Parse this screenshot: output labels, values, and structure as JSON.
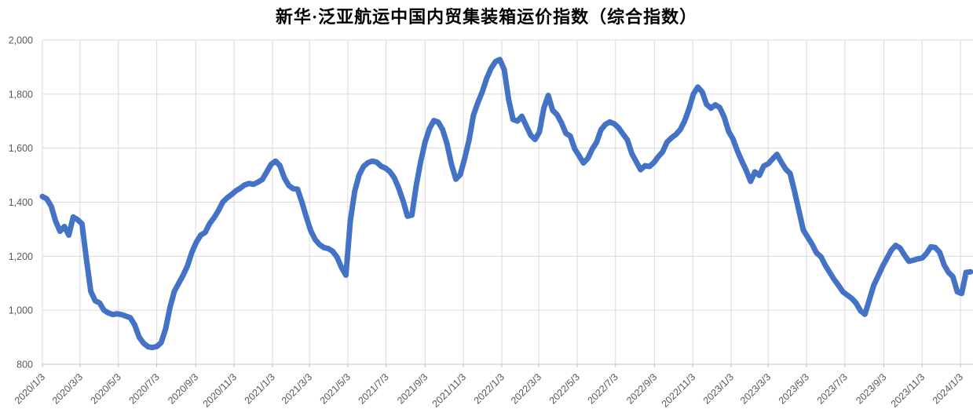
{
  "title": "新华·泛亚航运中国内贸集装箱运价指数（综合指数）",
  "chart_data": {
    "type": "line",
    "title": "新华·泛亚航运中国内贸集装箱运价指数（综合指数）",
    "series_name": "综合指数",
    "line_color": "#4472C4",
    "grid": true,
    "gridline_color": "#D9D9D9",
    "axis_line_color": "#BFBFBF",
    "label_color": "#595959",
    "ylim": [
      800,
      2000
    ],
    "y_tick_values": [
      800,
      1000,
      1200,
      1400,
      1600,
      1800,
      2000
    ],
    "y_tick_labels": [
      "800",
      "1,000",
      "1,200",
      "1,400",
      "1,600",
      "1,800",
      "2,000"
    ],
    "x_tick_labels": [
      "2020/1/3",
      "2020/3/3",
      "2020/5/3",
      "2020/7/3",
      "2020/9/3",
      "2020/11/3",
      "2021/1/3",
      "2021/3/3",
      "2021/5/3",
      "2021/7/3",
      "2021/9/3",
      "2021/11/3",
      "2022/1/3",
      "2022/3/3",
      "2022/5/3",
      "2022/7/3",
      "2022/9/3",
      "2022/11/3",
      "2023/1/3",
      "2023/3/3",
      "2023/5/3",
      "2023/7/3",
      "2023/9/3",
      "2023/11/3",
      "2024/1/3"
    ],
    "start_date": "2020/1/3",
    "interval_days": 7,
    "values": [
      1421,
      1412,
      1385,
      1330,
      1292,
      1310,
      1278,
      1345,
      1335,
      1320,
      1190,
      1070,
      1035,
      1027,
      1000,
      990,
      984,
      987,
      984,
      978,
      972,
      945,
      900,
      878,
      865,
      862,
      866,
      880,
      930,
      1010,
      1070,
      1100,
      1130,
      1165,
      1215,
      1252,
      1278,
      1288,
      1320,
      1342,
      1368,
      1400,
      1416,
      1428,
      1442,
      1452,
      1464,
      1469,
      1466,
      1474,
      1484,
      1512,
      1540,
      1552,
      1535,
      1490,
      1462,
      1450,
      1448,
      1400,
      1345,
      1295,
      1262,
      1243,
      1232,
      1228,
      1218,
      1196,
      1158,
      1130,
      1330,
      1440,
      1500,
      1532,
      1546,
      1552,
      1548,
      1533,
      1526,
      1513,
      1490,
      1452,
      1405,
      1348,
      1352,
      1462,
      1550,
      1622,
      1672,
      1702,
      1696,
      1668,
      1615,
      1540,
      1485,
      1502,
      1562,
      1630,
      1722,
      1768,
      1808,
      1858,
      1895,
      1920,
      1928,
      1890,
      1780,
      1706,
      1700,
      1718,
      1683,
      1648,
      1632,
      1660,
      1748,
      1795,
      1740,
      1724,
      1694,
      1655,
      1645,
      1598,
      1572,
      1545,
      1562,
      1596,
      1622,
      1668,
      1688,
      1697,
      1690,
      1675,
      1652,
      1630,
      1580,
      1550,
      1520,
      1535,
      1532,
      1546,
      1568,
      1586,
      1622,
      1638,
      1650,
      1668,
      1700,
      1745,
      1800,
      1826,
      1808,
      1762,
      1748,
      1760,
      1750,
      1715,
      1662,
      1634,
      1590,
      1552,
      1518,
      1477,
      1512,
      1499,
      1534,
      1542,
      1560,
      1577,
      1548,
      1522,
      1506,
      1440,
      1368,
      1296,
      1270,
      1244,
      1212,
      1198,
      1166,
      1140,
      1114,
      1092,
      1068,
      1056,
      1044,
      1026,
      998,
      985,
      1038,
      1092,
      1126,
      1162,
      1192,
      1222,
      1240,
      1230,
      1204,
      1181,
      1185,
      1190,
      1193,
      1210,
      1235,
      1232,
      1214,
      1168,
      1140,
      1124,
      1068,
      1062,
      1140,
      1142
    ]
  }
}
